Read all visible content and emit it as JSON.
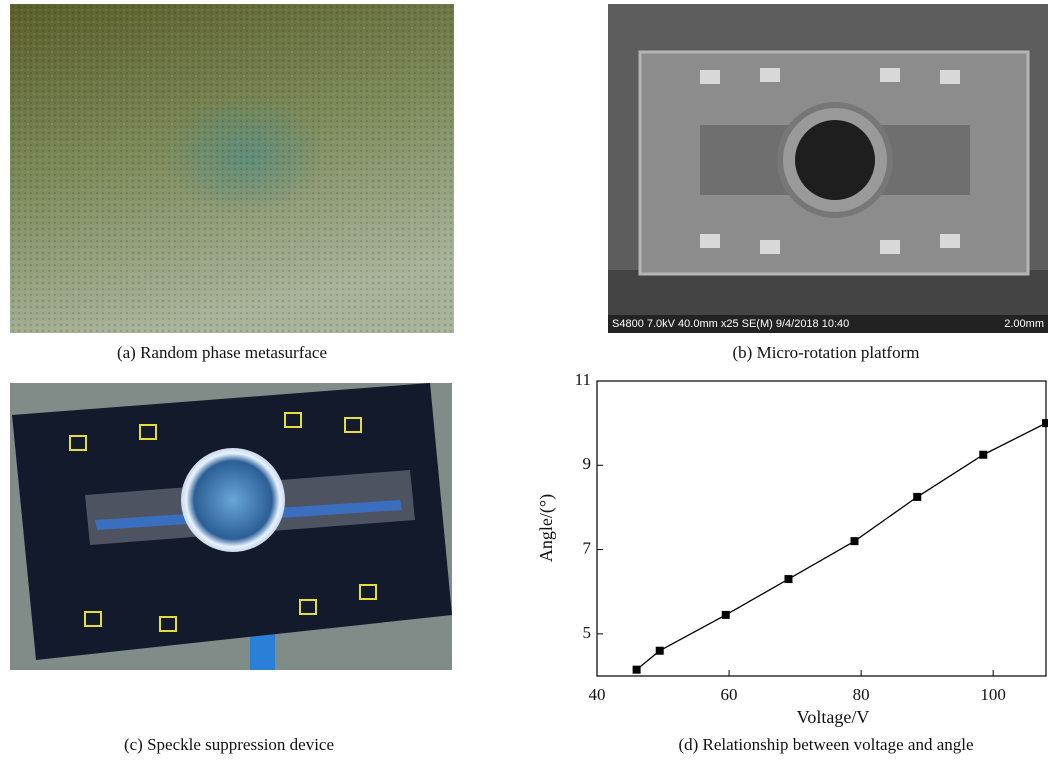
{
  "panels": [
    {
      "caption": "(a) Random phase metasurface"
    },
    {
      "caption": "(b) Micro-rotation platform",
      "info_bar": "S4800 7.0kV 40.0mm x25 SE(M) 9/4/2018 10:40",
      "scale_bar": "2.00mm"
    },
    {
      "caption": "(c) Speckle suppression device"
    },
    {
      "caption": "(d) Relationship between voltage and angle"
    }
  ],
  "chart_data": {
    "type": "line",
    "x_label": "Voltage/V",
    "y_label": "Angle/(°)",
    "x": [
      46,
      49.5,
      59.5,
      69,
      79,
      88.5,
      98.5,
      108
    ],
    "values": [
      4.15,
      4.6,
      5.45,
      6.3,
      7.2,
      8.25,
      9.25,
      10.0
    ],
    "color": "#000000",
    "marker": "square",
    "xlim": [
      40,
      108
    ],
    "xticks": [
      40,
      60,
      80,
      100
    ],
    "ylim": [
      4,
      11
    ],
    "yticks": [
      5,
      7,
      9,
      11
    ]
  }
}
